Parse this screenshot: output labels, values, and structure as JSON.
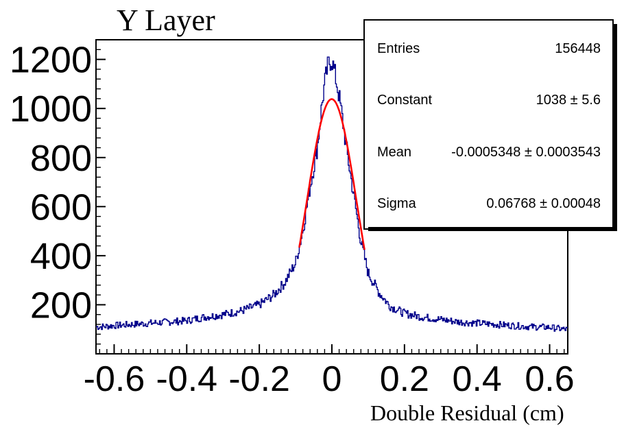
{
  "chart_data": {
    "type": "line",
    "title": "Y Layer",
    "xlabel": "Double Residual (cm)",
    "ylabel": "",
    "xlim": [
      -0.65,
      0.65
    ],
    "ylim": [
      0,
      1280
    ],
    "x_ticks": [
      "-0.6",
      "-0.4",
      "-0.2",
      "0",
      "0.2",
      "0.4",
      "0.6"
    ],
    "y_ticks": [
      "200",
      "400",
      "600",
      "800",
      "1000",
      "1200"
    ],
    "series": [
      {
        "kind": "histogram",
        "color": "#00008b",
        "x": [
          -0.64,
          -0.6,
          -0.55,
          -0.5,
          -0.45,
          -0.4,
          -0.35,
          -0.3,
          -0.25,
          -0.2,
          -0.16,
          -0.13,
          -0.1,
          -0.08,
          -0.06,
          -0.04,
          -0.03,
          -0.02,
          -0.01,
          0,
          0.01,
          0.02,
          0.03,
          0.04,
          0.06,
          0.08,
          0.1,
          0.13,
          0.16,
          0.2,
          0.25,
          0.3,
          0.35,
          0.4,
          0.45,
          0.5,
          0.55,
          0.6,
          0.64
        ],
        "y": [
          110,
          115,
          120,
          125,
          130,
          135,
          150,
          160,
          175,
          200,
          240,
          290,
          370,
          500,
          680,
          840,
          980,
          1100,
          1180,
          1200,
          1130,
          1050,
          950,
          840,
          650,
          460,
          330,
          250,
          195,
          165,
          150,
          140,
          130,
          125,
          120,
          115,
          110,
          108,
          100
        ]
      },
      {
        "kind": "gaussian-fit",
        "color": "#ff0000",
        "constant": 1038,
        "mean": -0.0005348,
        "sigma": 0.06768,
        "range": [
          -0.09,
          0.09
        ]
      }
    ],
    "stats_box": {
      "rows": [
        {
          "label": "Entries",
          "value": "156448"
        },
        {
          "label": "Constant",
          "value": "1038 ± 5.6"
        },
        {
          "label": "Mean",
          "value": "-0.0005348 ± 0.0003543"
        },
        {
          "label": "Sigma",
          "value": "0.06768 ± 0.00048"
        }
      ]
    },
    "grid": false,
    "legend": "top-right"
  }
}
